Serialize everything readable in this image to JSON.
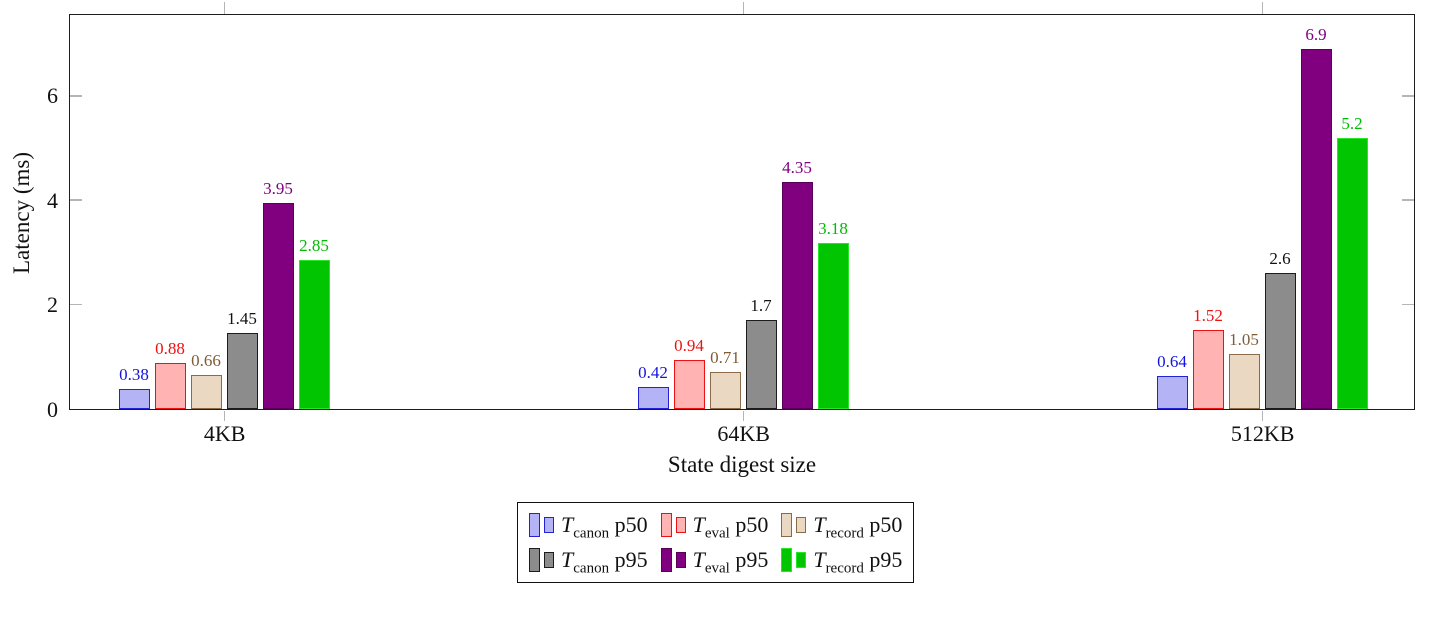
{
  "chart_data": {
    "type": "bar",
    "title": "",
    "xlabel": "State digest size",
    "ylabel": "Latency (ms)",
    "categories": [
      "4KB",
      "64KB",
      "512KB"
    ],
    "ylim": [
      0,
      7.55
    ],
    "ytick_labels": [
      "0",
      "2",
      "4",
      "6"
    ],
    "ytick_values": [
      0,
      2,
      4,
      6
    ],
    "grid": false,
    "legend_position": "below-center",
    "series": [
      {
        "name": "T_canon p50",
        "t_sub": "canon",
        "suffix": "p50",
        "values": [
          0.38,
          0.42,
          0.64
        ],
        "value_labels": [
          "0.38",
          "0.42",
          "0.64"
        ],
        "fill": "#b3b3f5",
        "stroke": "#2222d6",
        "label_color": "#1414dd"
      },
      {
        "name": "T_eval p50",
        "t_sub": "eval",
        "suffix": "p50",
        "values": [
          0.88,
          0.94,
          1.52
        ],
        "value_labels": [
          "0.88",
          "0.94",
          "1.52"
        ],
        "fill": "#ffb3b3",
        "stroke": "#ee1111",
        "label_color": "#ee1111"
      },
      {
        "name": "T_record p50",
        "t_sub": "record",
        "suffix": "p50",
        "values": [
          0.66,
          0.71,
          1.05
        ],
        "value_labels": [
          "0.66",
          "0.71",
          "1.05"
        ],
        "fill": "#ebd8c3",
        "stroke": "#8a6a49",
        "label_color": "#7e5c36"
      },
      {
        "name": "T_canon p95",
        "t_sub": "canon",
        "suffix": "p95",
        "values": [
          1.45,
          1.7,
          2.6
        ],
        "value_labels": [
          "1.45",
          "1.7",
          "2.6"
        ],
        "fill": "#8c8c8c",
        "stroke": "#1c1c1c",
        "label_color": "#111111"
      },
      {
        "name": "T_eval p95",
        "t_sub": "eval",
        "suffix": "p95",
        "values": [
          3.95,
          4.35,
          6.9
        ],
        "value_labels": [
          "3.95",
          "4.35",
          "6.9"
        ],
        "fill": "#800080",
        "stroke": "#570057",
        "label_color": "#800080"
      },
      {
        "name": "T_record p95",
        "t_sub": "record",
        "suffix": "p95",
        "values": [
          2.85,
          3.18,
          5.2
        ],
        "value_labels": [
          "2.85",
          "3.18",
          "5.2"
        ],
        "fill": "#00c500",
        "stroke": "#27e627",
        "label_color": "#00bb00"
      }
    ]
  },
  "colors": {
    "axis": "#1e1e1e",
    "tick": "#b5b5b5",
    "text": "#111111",
    "background": "#ffffff"
  }
}
